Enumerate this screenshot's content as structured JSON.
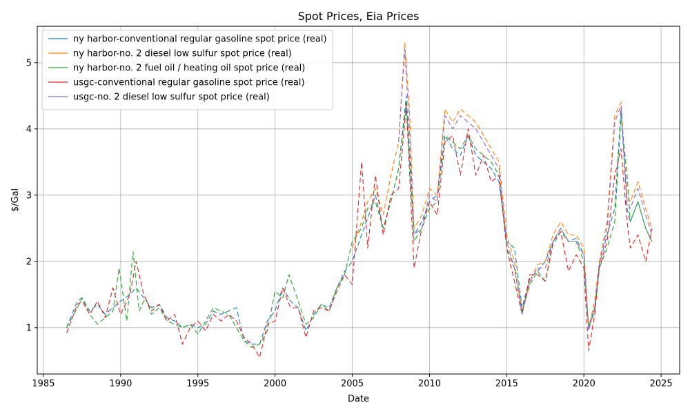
{
  "chart_data": {
    "type": "line",
    "title": "Spot Prices, Eia Prices",
    "xlabel": "Date",
    "ylabel": "$/Gal",
    "xlim": [
      1984.6,
      2026.2
    ],
    "ylim": [
      0.3,
      5.55
    ],
    "xticks": [
      1985,
      1990,
      1995,
      2000,
      2005,
      2010,
      2015,
      2020,
      2025
    ],
    "yticks": [
      1,
      2,
      3,
      4,
      5
    ],
    "grid": true,
    "legend_position": "upper-left",
    "series": [
      {
        "name": "ny harbor-conventional regular gasoline spot price (real)",
        "color": "#1f77b4",
        "x": [
          1986.5,
          1987.2,
          1987.5,
          1988.0,
          1988.5,
          1989.0,
          1989.5,
          1990.0,
          1990.6,
          1991.0,
          1991.5,
          1992.0,
          1992.5,
          1993.0,
          1993.5,
          1994.0,
          1994.5,
          1995.0,
          1995.5,
          1996.0,
          1996.5,
          1997.0,
          1997.5,
          1998.0,
          1998.5,
          1999.0,
          1999.5,
          2000.0,
          2000.5,
          2001.0,
          2001.5,
          2002.0,
          2002.5,
          2003.0,
          2003.5,
          2004.0,
          2004.5,
          2005.0,
          2005.6,
          2006.0,
          2006.5,
          2007.0,
          2007.5,
          2008.0,
          2008.5,
          2009.0,
          2009.5,
          2010.0,
          2010.5,
          2011.0,
          2011.5,
          2012.0,
          2012.5,
          2013.0,
          2013.5,
          2014.0,
          2014.5,
          2015.0,
          2015.5,
          2016.0,
          2016.5,
          2017.0,
          2017.5,
          2018.0,
          2018.5,
          2019.0,
          2019.5,
          2020.0,
          2020.3,
          2020.7,
          2021.0,
          2021.5,
          2022.0,
          2022.4,
          2022.8,
          2023.0,
          2023.5,
          2024.0,
          2024.4
        ],
        "y": [
          1.0,
          1.4,
          1.45,
          1.25,
          1.35,
          1.2,
          1.3,
          1.4,
          1.5,
          1.6,
          1.45,
          1.3,
          1.35,
          1.15,
          1.1,
          1.0,
          1.05,
          1.0,
          1.05,
          1.25,
          1.2,
          1.25,
          1.3,
          0.8,
          0.75,
          0.75,
          1.1,
          1.25,
          1.6,
          1.4,
          1.3,
          0.95,
          1.2,
          1.35,
          1.3,
          1.6,
          1.85,
          2.0,
          2.4,
          2.65,
          3.0,
          2.5,
          2.9,
          3.4,
          4.5,
          2.4,
          2.6,
          2.9,
          3.0,
          3.9,
          3.7,
          3.6,
          3.9,
          3.6,
          3.5,
          3.4,
          3.2,
          2.3,
          2.2,
          1.3,
          1.75,
          1.85,
          2.0,
          2.3,
          2.5,
          2.3,
          2.35,
          2.1,
          1.0,
          1.3,
          1.95,
          2.4,
          2.8,
          4.3,
          2.8,
          2.6,
          2.9,
          2.5,
          2.3
        ]
      },
      {
        "name": "ny harbor-no. 2 diesel low sulfur spot price (real)",
        "color": "#ff7f0e",
        "x": [
          2005.0,
          2005.6,
          2006.0,
          2006.5,
          2007.0,
          2007.5,
          2008.0,
          2008.4,
          2008.7,
          2009.0,
          2009.5,
          2010.0,
          2010.5,
          2011.0,
          2011.5,
          2012.0,
          2012.5,
          2013.0,
          2013.5,
          2014.0,
          2014.5,
          2015.0,
          2015.5,
          2016.0,
          2016.5,
          2017.0,
          2017.5,
          2018.0,
          2018.5,
          2019.0,
          2019.5,
          2020.0,
          2020.3,
          2020.7,
          2021.0,
          2021.5,
          2022.0,
          2022.4,
          2022.8,
          2023.0,
          2023.5,
          2024.0,
          2024.4
        ],
        "y": [
          2.2,
          2.6,
          2.9,
          3.1,
          2.7,
          3.3,
          3.8,
          5.3,
          4.3,
          2.5,
          2.7,
          3.1,
          3.0,
          4.3,
          4.1,
          4.3,
          4.2,
          4.1,
          3.9,
          3.7,
          3.5,
          2.4,
          2.0,
          1.25,
          1.7,
          1.95,
          2.0,
          2.4,
          2.6,
          2.4,
          2.4,
          2.2,
          1.0,
          1.4,
          2.0,
          2.6,
          4.2,
          4.4,
          3.0,
          2.9,
          3.2,
          2.8,
          2.5
        ]
      },
      {
        "name": "ny harbor-no. 2 fuel oil / heating oil spot price (real)",
        "color": "#2ca02c",
        "x": [
          1986.5,
          1987.2,
          1987.5,
          1988.0,
          1988.5,
          1989.0,
          1989.5,
          1989.9,
          1990.4,
          1990.8,
          1991.2,
          1991.6,
          1992.0,
          1992.5,
          1993.0,
          1993.5,
          1994.0,
          1994.5,
          1995.0,
          1995.5,
          1996.0,
          1996.5,
          1997.0,
          1997.5,
          1998.0,
          1998.5,
          1999.0,
          1999.5,
          2000.0,
          2000.5,
          2000.9,
          2001.5,
          2002.0,
          2002.5,
          2003.0,
          2003.5,
          2004.0,
          2004.5,
          2005.0,
          2005.6,
          2006.0,
          2006.5,
          2007.0,
          2007.5,
          2008.0,
          2008.5,
          2009.0,
          2009.5,
          2010.0,
          2010.5,
          2011.0,
          2011.5,
          2012.0,
          2012.5,
          2013.0,
          2013.5,
          2014.0,
          2014.5,
          2015.0,
          2015.5,
          2016.0,
          2016.5,
          2017.0,
          2017.5,
          2018.0,
          2018.5,
          2019.0,
          2019.5,
          2020.0,
          2020.3,
          2020.7,
          2021.0,
          2021.5,
          2022.0,
          2022.4,
          2022.8,
          2023.0,
          2023.5,
          2024.0,
          2024.4
        ],
        "y": [
          1.0,
          1.3,
          1.45,
          1.2,
          1.05,
          1.15,
          1.25,
          1.9,
          1.1,
          2.15,
          1.25,
          1.45,
          1.2,
          1.3,
          1.1,
          1.05,
          1.0,
          1.05,
          0.9,
          1.1,
          1.3,
          1.25,
          1.2,
          1.0,
          0.8,
          0.7,
          0.75,
          0.95,
          1.55,
          1.45,
          1.8,
          1.4,
          1.05,
          1.15,
          1.35,
          1.25,
          1.6,
          1.8,
          2.3,
          2.5,
          2.8,
          2.9,
          2.5,
          2.9,
          3.4,
          4.4,
          2.3,
          2.5,
          2.8,
          2.9,
          3.9,
          3.8,
          3.7,
          3.9,
          3.7,
          3.6,
          3.5,
          3.3,
          2.2,
          1.9,
          1.25,
          1.65,
          1.85,
          1.7,
          2.25,
          2.45,
          2.3,
          2.3,
          2.0,
          1.0,
          1.25,
          1.9,
          2.2,
          2.6,
          4.2,
          3.3,
          2.6,
          2.9,
          2.5,
          2.3
        ]
      },
      {
        "name": "usgc-conventional regular gasoline spot price (real)",
        "color": "#d62728",
        "x": [
          1986.5,
          1987.2,
          1987.5,
          1988.0,
          1988.5,
          1989.0,
          1989.5,
          1990.0,
          1990.6,
          1991.0,
          1991.5,
          1992.0,
          1992.5,
          1993.0,
          1993.5,
          1994.0,
          1994.5,
          1995.0,
          1995.5,
          1996.0,
          1996.5,
          1997.0,
          1997.5,
          1998.0,
          1998.5,
          1999.0,
          1999.5,
          2000.0,
          2000.5,
          2001.0,
          2001.5,
          2002.0,
          2002.5,
          2003.0,
          2003.5,
          2004.0,
          2004.5,
          2005.0,
          2005.6,
          2006.0,
          2006.5,
          2007.0,
          2007.5,
          2008.0,
          2008.5,
          2009.0,
          2009.5,
          2010.0,
          2010.5,
          2011.0,
          2011.5,
          2012.0,
          2012.5,
          2013.0,
          2013.5,
          2014.0,
          2014.5,
          2015.0,
          2015.5,
          2016.0,
          2016.5,
          2017.0,
          2017.5,
          2018.0,
          2018.5,
          2019.0,
          2019.5,
          2020.0,
          2020.3,
          2020.7,
          2021.0,
          2021.5,
          2022.0,
          2022.4,
          2022.8,
          2023.0,
          2023.5,
          2024.0,
          2024.4
        ],
        "y": [
          0.92,
          1.35,
          1.4,
          1.2,
          1.4,
          1.15,
          1.6,
          1.2,
          1.5,
          2.0,
          1.5,
          1.25,
          1.35,
          1.1,
          1.2,
          0.75,
          1.0,
          1.1,
          0.95,
          1.2,
          1.1,
          1.2,
          1.1,
          0.85,
          0.75,
          0.55,
          1.05,
          1.1,
          1.6,
          1.3,
          1.3,
          0.85,
          1.25,
          1.3,
          1.25,
          1.55,
          1.8,
          1.65,
          3.5,
          2.2,
          3.3,
          2.4,
          3.0,
          3.1,
          4.35,
          1.9,
          2.5,
          2.9,
          2.7,
          3.8,
          3.9,
          3.3,
          4.0,
          3.3,
          3.6,
          3.2,
          3.3,
          2.2,
          1.7,
          1.2,
          1.8,
          1.8,
          1.7,
          2.3,
          2.45,
          1.85,
          2.1,
          1.9,
          0.65,
          1.2,
          1.9,
          2.3,
          3.3,
          3.7,
          2.6,
          2.2,
          2.4,
          2.0,
          2.5
        ]
      },
      {
        "name": "usgc-no. 2 diesel low sulfur spot price (real)",
        "color": "#9467bd",
        "x": [
          2008.0,
          2008.4,
          2008.7,
          2009.0,
          2009.5,
          2010.0,
          2010.5,
          2011.0,
          2011.5,
          2012.0,
          2012.5,
          2013.0,
          2013.5,
          2014.0,
          2014.5,
          2015.0,
          2015.5,
          2016.0,
          2016.5,
          2017.0,
          2017.5,
          2018.0,
          2018.5,
          2019.0,
          2019.5,
          2020.0,
          2020.3,
          2020.7,
          2021.0,
          2021.5,
          2022.0,
          2022.4,
          2022.8,
          2023.0,
          2023.5,
          2024.0,
          2024.4
        ],
        "y": [
          3.8,
          5.2,
          4.0,
          2.4,
          2.5,
          3.0,
          2.9,
          4.2,
          4.0,
          4.2,
          4.1,
          4.0,
          3.8,
          3.6,
          3.4,
          2.3,
          1.9,
          1.2,
          1.7,
          1.9,
          1.9,
          2.3,
          2.5,
          2.3,
          2.3,
          2.1,
          0.95,
          1.3,
          1.95,
          2.5,
          4.1,
          4.35,
          2.9,
          2.8,
          3.1,
          2.7,
          2.4
        ]
      }
    ]
  }
}
